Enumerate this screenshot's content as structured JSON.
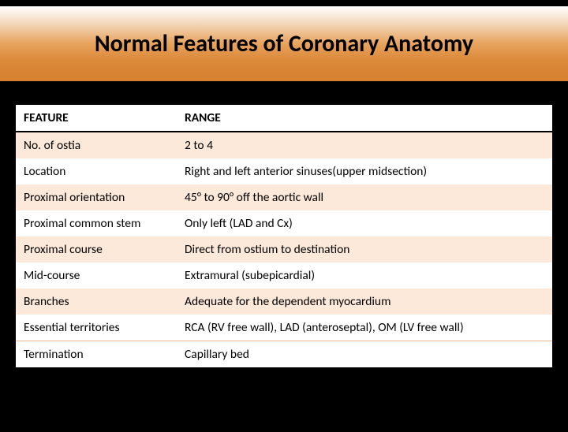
{
  "title": "Normal Features of Coronary Anatomy",
  "colors": {
    "page_bg": "#000000",
    "band_gradient_top": "#ffffff",
    "band_gradient_mid": "#e8a35e",
    "band_gradient_bottom": "#d67f2f",
    "row_band_a": "#fde9d9",
    "row_band_b": "#ffffff",
    "header_underline": "#000000",
    "row_sep": "#e9b58a",
    "text": "#000000"
  },
  "table": {
    "type": "table",
    "columns": [
      "FEATURE",
      "RANGE"
    ],
    "col_widths_pct": [
      30,
      70
    ],
    "header_fontsize": 15.5,
    "body_fontsize": 15.5,
    "rows": [
      {
        "feature": "No. of ostia",
        "range": "2 to 4"
      },
      {
        "feature": "Location",
        "range": "Right and left anterior sinuses(upper midsection)"
      },
      {
        "feature": "Proximal orientation",
        "range": "45° to 90° off the aortic wall"
      },
      {
        "feature": "Proximal common stem",
        "range": "Only left (LAD and Cx)"
      },
      {
        "feature": "Proximal course",
        "range": "Direct from ostium to destination"
      },
      {
        "feature": "Mid-course",
        "range": "Extramural (subepicardial)"
      },
      {
        "feature": "Branches",
        "range": "Adequate for the dependent myocardium"
      },
      {
        "feature": "Essential territories",
        "range": "RCA (RV free wall), LAD (anteroseptal), OM (LV free wall)"
      },
      {
        "feature": "Termination",
        "range": "Capillary bed"
      }
    ]
  }
}
